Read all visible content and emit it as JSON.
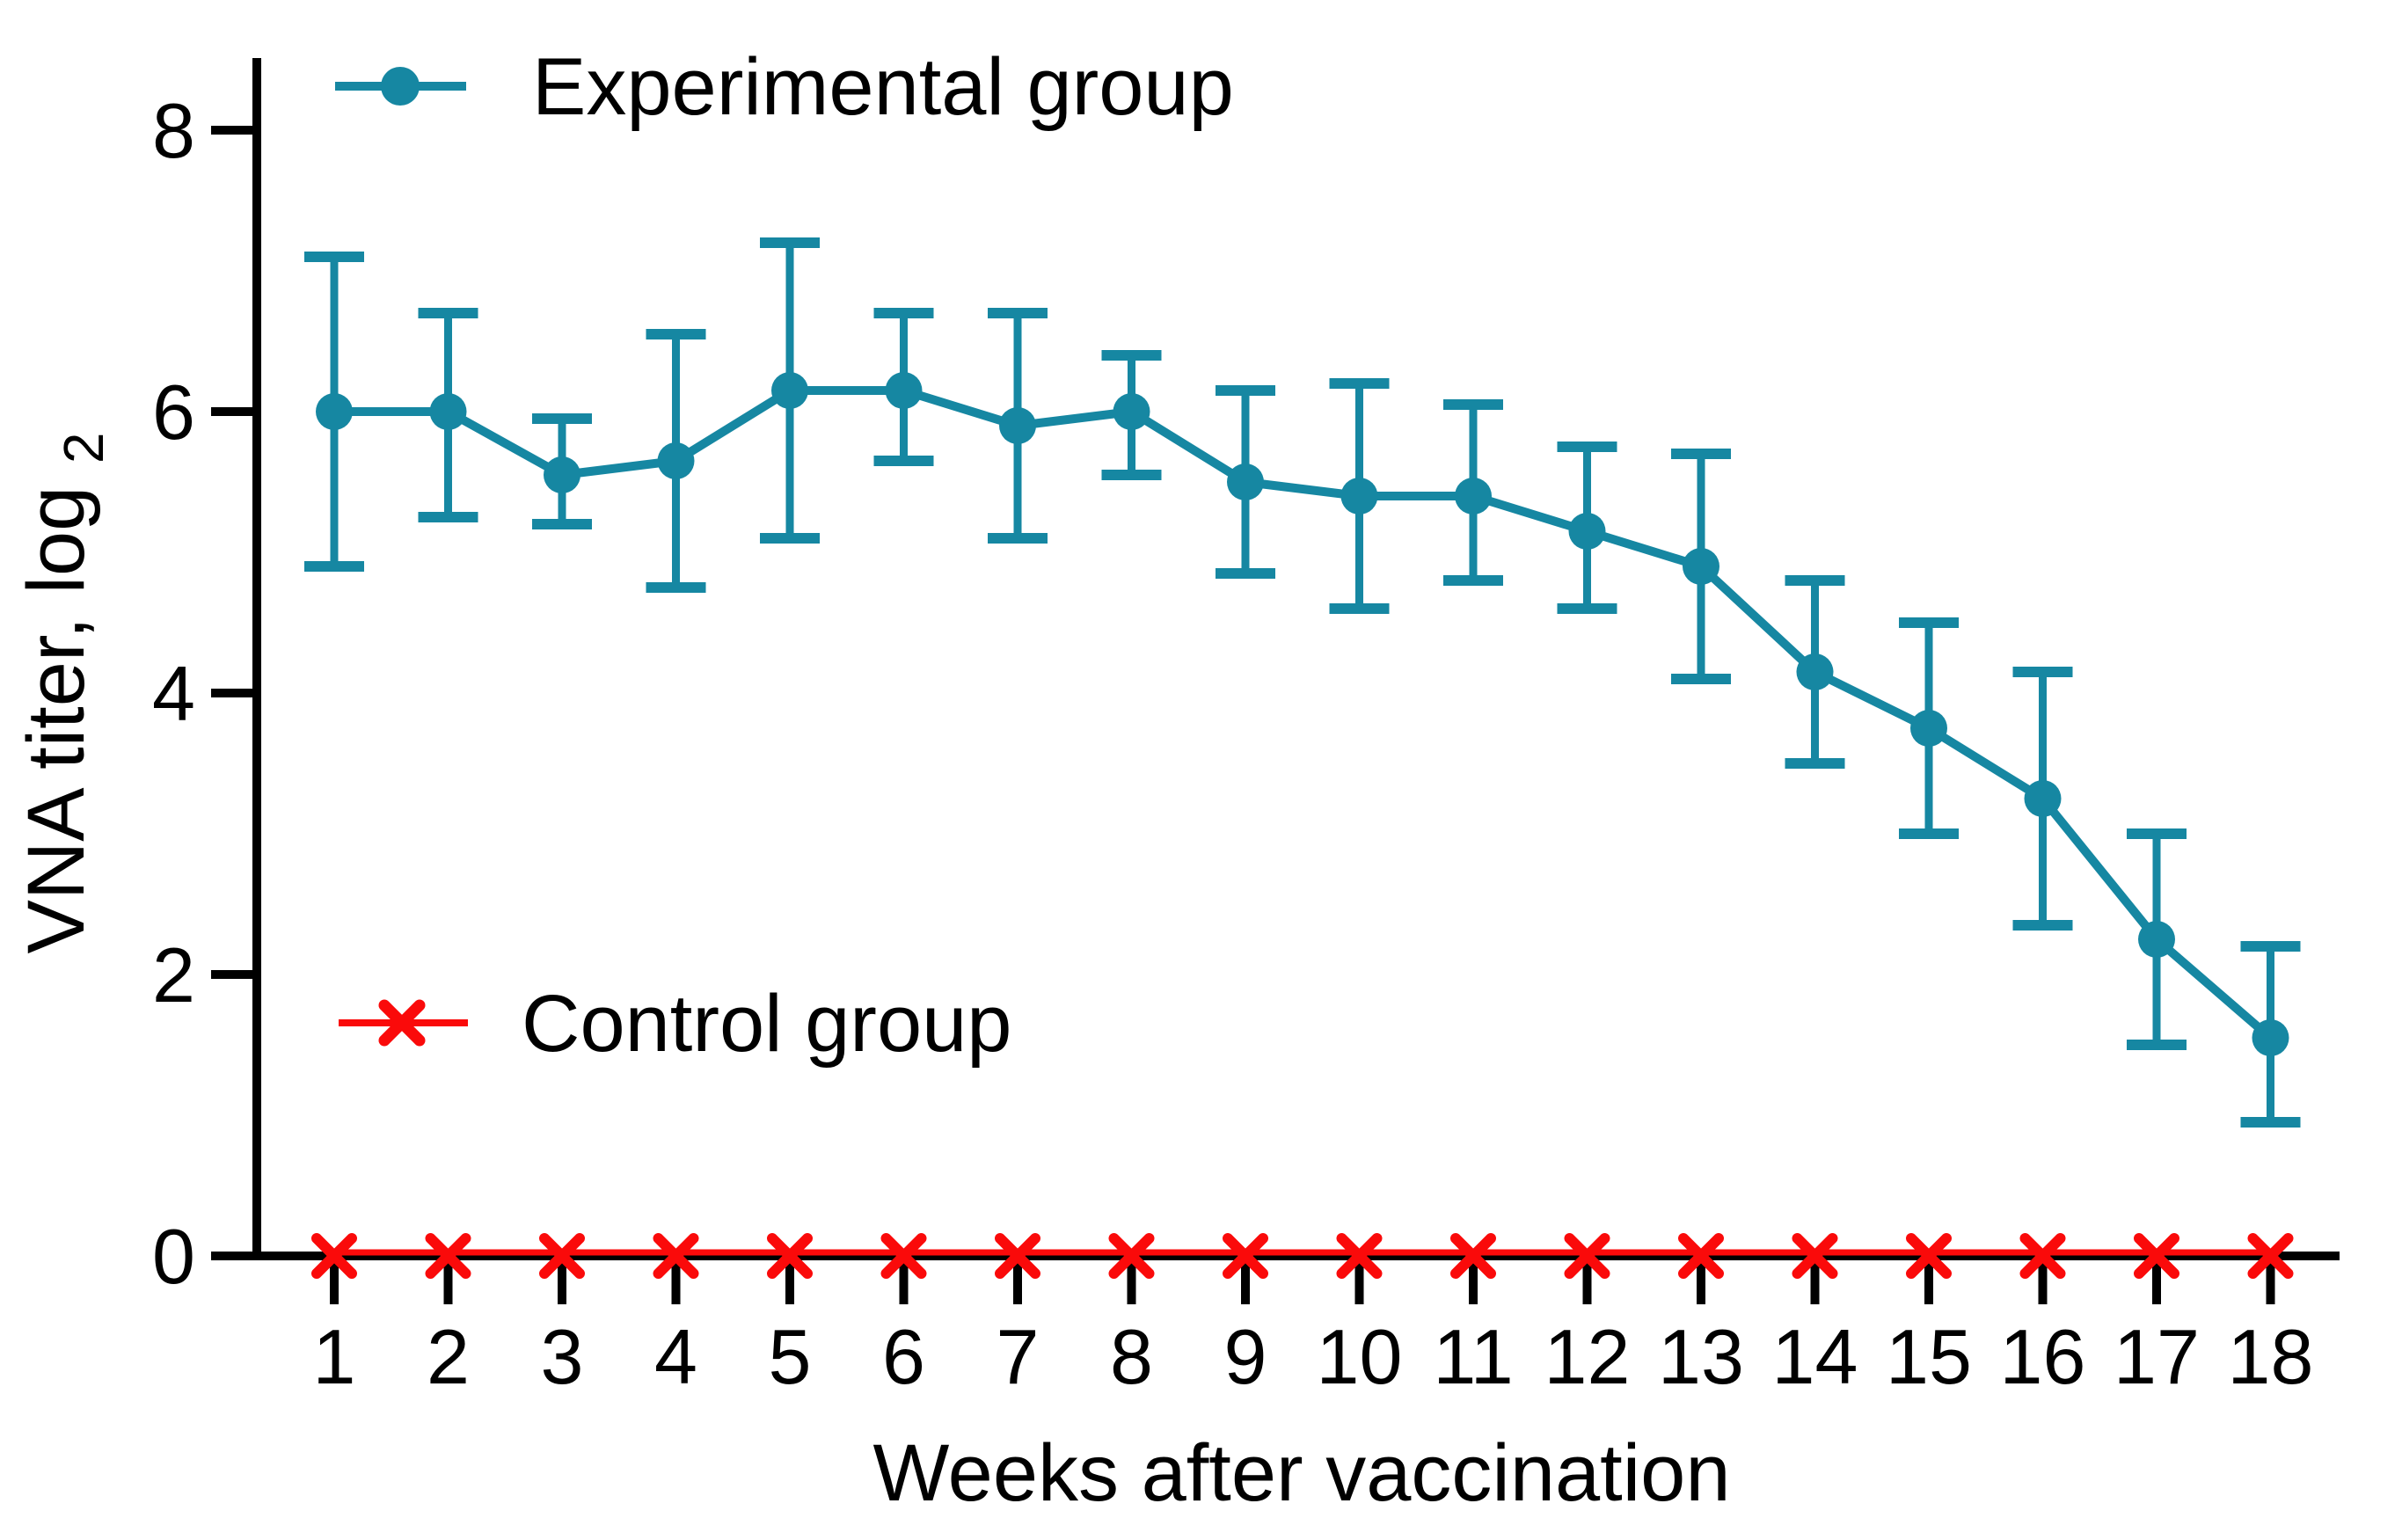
{
  "chart_data": {
    "type": "line",
    "title": "",
    "xlabel": "Weeks after vaccination",
    "ylabel": "VNA titer, log2",
    "ylabel_base": "VNA titer, log",
    "ylabel_sub": "2",
    "x": [
      1,
      2,
      3,
      4,
      5,
      6,
      7,
      8,
      9,
      10,
      11,
      12,
      13,
      14,
      15,
      16,
      17,
      18
    ],
    "yticks": [
      0,
      2,
      4,
      6,
      8
    ],
    "ylim": [
      0,
      8.5
    ],
    "xlim": [
      0.3,
      18.6
    ],
    "grid": false,
    "legend_position": "inside-left",
    "series": [
      {
        "name": "Experimental group",
        "marker": "circle",
        "color": "#1687A2",
        "values": [
          6.0,
          6.0,
          5.55,
          5.65,
          6.15,
          6.15,
          5.9,
          6.0,
          5.5,
          5.4,
          5.4,
          5.15,
          4.9,
          4.15,
          3.75,
          3.25,
          2.25,
          1.55
        ],
        "err_lower": [
          4.9,
          5.25,
          5.2,
          4.75,
          5.1,
          5.65,
          5.1,
          5.55,
          4.85,
          4.6,
          4.8,
          4.6,
          4.1,
          3.5,
          3.0,
          2.35,
          1.5,
          0.95
        ],
        "err_upper": [
          7.1,
          6.7,
          5.95,
          6.55,
          7.2,
          6.7,
          6.7,
          6.4,
          6.15,
          6.2,
          6.05,
          5.75,
          5.7,
          4.8,
          4.5,
          4.15,
          3.0,
          2.2
        ]
      },
      {
        "name": "Control group",
        "marker": "x",
        "color": "#FA0A0A",
        "values": [
          0,
          0,
          0,
          0,
          0,
          0,
          0,
          0,
          0,
          0,
          0,
          0,
          0,
          0,
          0,
          0,
          0,
          0
        ]
      }
    ]
  },
  "colors": {
    "axis": "#000000",
    "text": "#000000",
    "experimental": "#1687A2",
    "control": "#FA0A0A"
  }
}
